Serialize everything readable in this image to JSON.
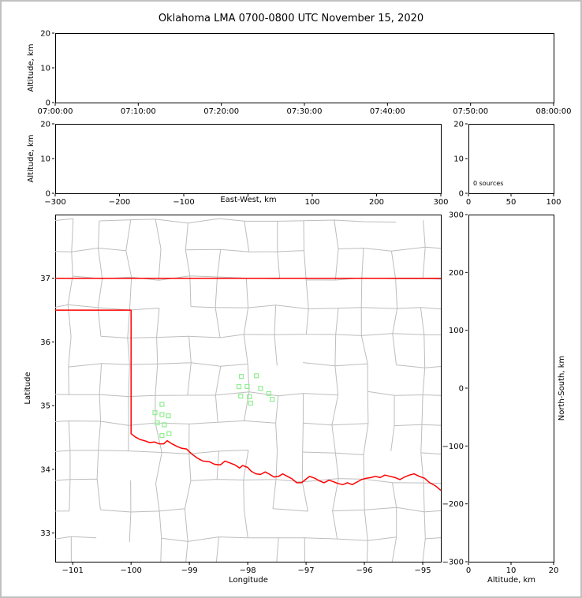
{
  "title": "Oklahoma LMA 0700-0800 UTC November 15, 2020",
  "colors": {
    "frame": "#c0c0c0",
    "axis": "#000000",
    "county_lines": "#bdbdbd",
    "state_border": "#ff0000",
    "station_marker": "#90ee90",
    "background": "#ffffff"
  },
  "chart_data": [
    {
      "type": "scatter",
      "name": "altitude-vs-time",
      "xlabel": "",
      "ylabel": "Altitude, km",
      "xtick_labels": [
        "07:00:00",
        "07:10:00",
        "07:20:00",
        "07:30:00",
        "07:40:00",
        "07:50:00",
        "08:00:00"
      ],
      "ylim": [
        0,
        20
      ],
      "yticks": [
        0,
        10,
        20
      ],
      "points": []
    },
    {
      "type": "scatter",
      "name": "altitude-vs-east-west",
      "xlabel": "East-West, km",
      "ylabel": "Altitude, km",
      "xlim": [
        -300,
        300
      ],
      "xticks": [
        -300,
        -200,
        -100,
        0,
        100,
        200,
        300
      ],
      "xlabel_replaces_zero_tick": true,
      "ylim": [
        0,
        20
      ],
      "yticks": [
        0,
        10,
        20
      ],
      "points": []
    },
    {
      "type": "histogram",
      "name": "altitude-source-histogram",
      "annotation": "0 sources",
      "xlim": [
        0,
        100
      ],
      "xticks": [
        0,
        50,
        100
      ],
      "ylim": [
        0,
        20
      ],
      "yticks": [
        0,
        10,
        20
      ],
      "bars": []
    },
    {
      "type": "scatter",
      "name": "plan-view-map",
      "xlabel": "Longitude",
      "ylabel": "Latitude",
      "xlim": [
        -101.3,
        -94.69
      ],
      "xticks": [
        -101,
        -100,
        -99,
        -98,
        -97,
        -96,
        -95
      ],
      "ylim": [
        32.55,
        38.0
      ],
      "yticks": [
        33,
        34,
        35,
        36,
        37
      ],
      "points": [],
      "stations": [
        [
          -99.47,
          35.02
        ],
        [
          -99.59,
          34.89
        ],
        [
          -99.47,
          34.86
        ],
        [
          -99.36,
          34.84
        ],
        [
          -99.55,
          34.73
        ],
        [
          -99.43,
          34.7
        ],
        [
          -99.35,
          34.56
        ],
        [
          -99.47,
          34.53
        ],
        [
          -98.11,
          35.46
        ],
        [
          -97.85,
          35.47
        ],
        [
          -98.15,
          35.3
        ],
        [
          -98.01,
          35.3
        ],
        [
          -97.78,
          35.27
        ],
        [
          -98.12,
          35.15
        ],
        [
          -97.97,
          35.14
        ],
        [
          -97.64,
          35.19
        ],
        [
          -97.95,
          35.04
        ],
        [
          -97.58,
          35.1
        ]
      ],
      "state_border": {
        "north": [
          [
            -101.3,
            37.0
          ],
          [
            -94.69,
            37.0
          ]
        ],
        "west_and_red_river": [
          [
            -101.3,
            36.5
          ],
          [
            -100.0,
            36.5
          ],
          [
            -100.0,
            34.56
          ],
          [
            -99.93,
            34.51
          ],
          [
            -99.85,
            34.47
          ],
          [
            -99.77,
            34.45
          ],
          [
            -99.68,
            34.42
          ],
          [
            -99.6,
            34.43
          ],
          [
            -99.52,
            34.4
          ],
          [
            -99.44,
            34.4
          ],
          [
            -99.38,
            34.45
          ],
          [
            -99.3,
            34.4
          ],
          [
            -99.21,
            34.36
          ],
          [
            -99.13,
            34.33
          ],
          [
            -99.05,
            34.32
          ],
          [
            -98.97,
            34.25
          ],
          [
            -98.87,
            34.18
          ],
          [
            -98.77,
            34.13
          ],
          [
            -98.66,
            34.12
          ],
          [
            -98.57,
            34.08
          ],
          [
            -98.47,
            34.07
          ],
          [
            -98.39,
            34.13
          ],
          [
            -98.3,
            34.1
          ],
          [
            -98.22,
            34.07
          ],
          [
            -98.14,
            34.02
          ],
          [
            -98.09,
            34.06
          ],
          [
            -98.0,
            34.03
          ],
          [
            -97.94,
            33.97
          ],
          [
            -97.86,
            33.93
          ],
          [
            -97.78,
            33.92
          ],
          [
            -97.7,
            33.96
          ],
          [
            -97.62,
            33.92
          ],
          [
            -97.55,
            33.88
          ],
          [
            -97.47,
            33.89
          ],
          [
            -97.4,
            33.93
          ],
          [
            -97.32,
            33.89
          ],
          [
            -97.24,
            33.85
          ],
          [
            -97.16,
            33.79
          ],
          [
            -97.08,
            33.79
          ],
          [
            -97.01,
            33.84
          ],
          [
            -96.94,
            33.89
          ],
          [
            -96.85,
            33.86
          ],
          [
            -96.77,
            33.82
          ],
          [
            -96.69,
            33.79
          ],
          [
            -96.61,
            33.83
          ],
          [
            -96.54,
            33.81
          ],
          [
            -96.46,
            33.78
          ],
          [
            -96.37,
            33.76
          ],
          [
            -96.29,
            33.79
          ],
          [
            -96.21,
            33.76
          ],
          [
            -96.13,
            33.8
          ],
          [
            -96.05,
            33.84
          ],
          [
            -95.97,
            33.86
          ],
          [
            -95.89,
            33.87
          ],
          [
            -95.81,
            33.89
          ],
          [
            -95.73,
            33.87
          ],
          [
            -95.65,
            33.91
          ],
          [
            -95.56,
            33.89
          ],
          [
            -95.47,
            33.87
          ],
          [
            -95.39,
            33.84
          ],
          [
            -95.31,
            33.88
          ],
          [
            -95.23,
            33.91
          ],
          [
            -95.15,
            33.93
          ],
          [
            -95.06,
            33.89
          ],
          [
            -94.97,
            33.86
          ],
          [
            -94.88,
            33.79
          ],
          [
            -94.78,
            33.74
          ],
          [
            -94.69,
            33.67
          ]
        ]
      }
    },
    {
      "type": "scatter",
      "name": "altitude-vs-north-south",
      "xlabel": "Altitude, km",
      "ylabel": "North-South, km",
      "xlim": [
        0,
        20
      ],
      "xticks": [
        0,
        10,
        20
      ],
      "ylim": [
        -300,
        300
      ],
      "yticks": [
        -300,
        -200,
        -100,
        0,
        100,
        200,
        300
      ],
      "points": []
    }
  ]
}
